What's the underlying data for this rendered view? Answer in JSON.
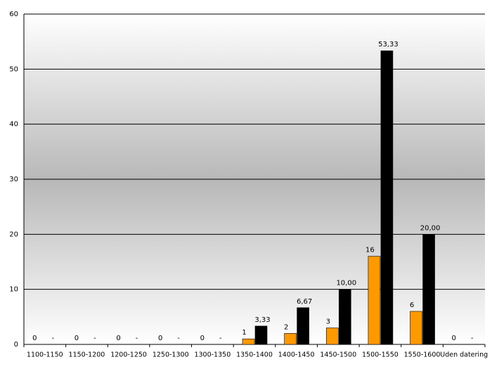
{
  "chart_data": {
    "type": "bar",
    "categories": [
      "1100-1150",
      "1150-1200",
      "1200-1250",
      "1250-1300",
      "1300-1350",
      "1350-1400",
      "1400-1450",
      "1450-1500",
      "1500-1550",
      "1550-1600",
      "Uden datering"
    ],
    "series": [
      {
        "color": "#ff9900",
        "values": [
          0,
          0,
          0,
          0,
          0,
          1,
          2,
          3,
          16,
          6,
          0
        ]
      },
      {
        "color": "#000000",
        "values": [
          0,
          0,
          0,
          0,
          0,
          3.33,
          6.67,
          10,
          53.33,
          20,
          0
        ],
        "value_labels": [
          "-",
          "-",
          "-",
          "-",
          "-",
          "3,33",
          "6,67",
          "10,00",
          "53,33",
          "20,00",
          "-"
        ]
      }
    ],
    "ylim": [
      0,
      60
    ],
    "yticks": [
      0,
      10,
      20,
      30,
      40,
      50,
      60
    ],
    "grid": true
  }
}
